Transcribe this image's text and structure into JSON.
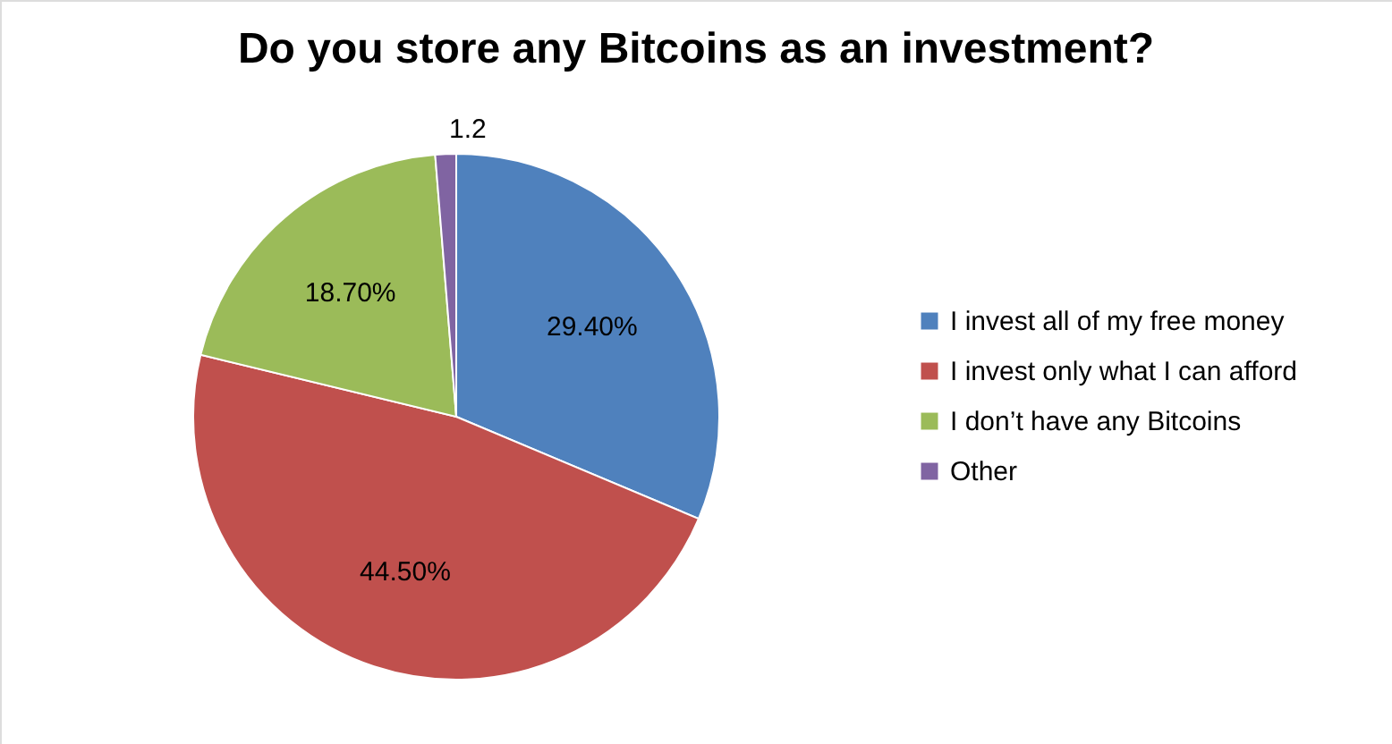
{
  "chart_data": {
    "type": "pie",
    "title": "Do you store any Bitcoins as an investment?",
    "categories": [
      "I invest all of my free money",
      "I invest only what I can afford",
      "I don’t have any Bitcoins",
      "Other"
    ],
    "values": [
      29.4,
      44.5,
      18.7,
      1.2
    ],
    "value_labels": [
      "29.40%",
      "44.50%",
      "18.70%",
      "1.2"
    ],
    "colors": [
      "#4f81bd",
      "#c0504d",
      "#9bbb59",
      "#8064a2"
    ],
    "legend": "right"
  }
}
